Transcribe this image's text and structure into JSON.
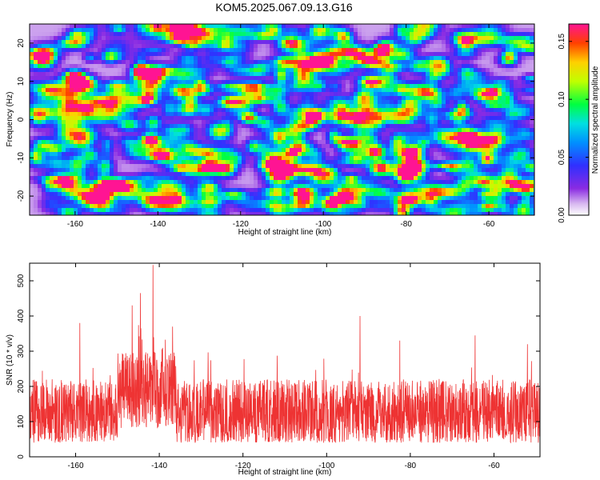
{
  "title": "KOM5.2025.067.09.13.G16",
  "chart_data": [
    {
      "type": "heatmap",
      "xlabel": "Height of straight line (km)",
      "ylabel": "Frequency (Hz)",
      "xlim": [
        -171,
        -49
      ],
      "ylim": [
        -25,
        25
      ],
      "xticks": [
        -160,
        -140,
        -120,
        -100,
        -80,
        -60
      ],
      "yticks": [
        -20,
        -10,
        0,
        10,
        20
      ],
      "colorbar": {
        "label": "Normalized spectral amplitude",
        "range": [
          0.0,
          0.165
        ],
        "ticks": [
          0.0,
          0.05,
          0.1,
          0.15
        ],
        "tick_labels": [
          "0.00",
          "0.05",
          "0.10",
          "0.15"
        ]
      },
      "hotspots": [
        {
          "x": -86,
          "y": 18,
          "amplitude": 0.16
        },
        {
          "x": -59,
          "y": 7,
          "amplitude": 0.15
        },
        {
          "x": -118,
          "y": 0.5,
          "amplitude": 0.13
        },
        {
          "x": -134,
          "y": 21,
          "amplitude": 0.12
        },
        {
          "x": -78,
          "y": -8,
          "amplitude": 0.11
        },
        {
          "x": -150,
          "y": -17,
          "amplitude": 0.11
        }
      ]
    },
    {
      "type": "line",
      "color": "#ee3333",
      "xlabel": "Height of straight line (km)",
      "ylabel": "SNR (10 * v/v)",
      "xlim": [
        -171,
        -49
      ],
      "ylim": [
        0,
        550
      ],
      "xticks": [
        -160,
        -140,
        -120,
        -100,
        -80,
        -60
      ],
      "yticks": [
        0,
        100,
        200,
        300,
        400,
        500
      ],
      "baseline_range": [
        40,
        220
      ],
      "peaks": [
        {
          "x": -141.5,
          "y": 545
        },
        {
          "x": -144.5,
          "y": 465
        },
        {
          "x": -146.5,
          "y": 430
        },
        {
          "x": -92.0,
          "y": 400
        },
        {
          "x": -159.0,
          "y": 380
        },
        {
          "x": -64.5,
          "y": 345
        },
        {
          "x": -82.5,
          "y": 330
        },
        {
          "x": -52.0,
          "y": 320
        }
      ],
      "elevated_region": [
        -150,
        -136
      ]
    }
  ]
}
